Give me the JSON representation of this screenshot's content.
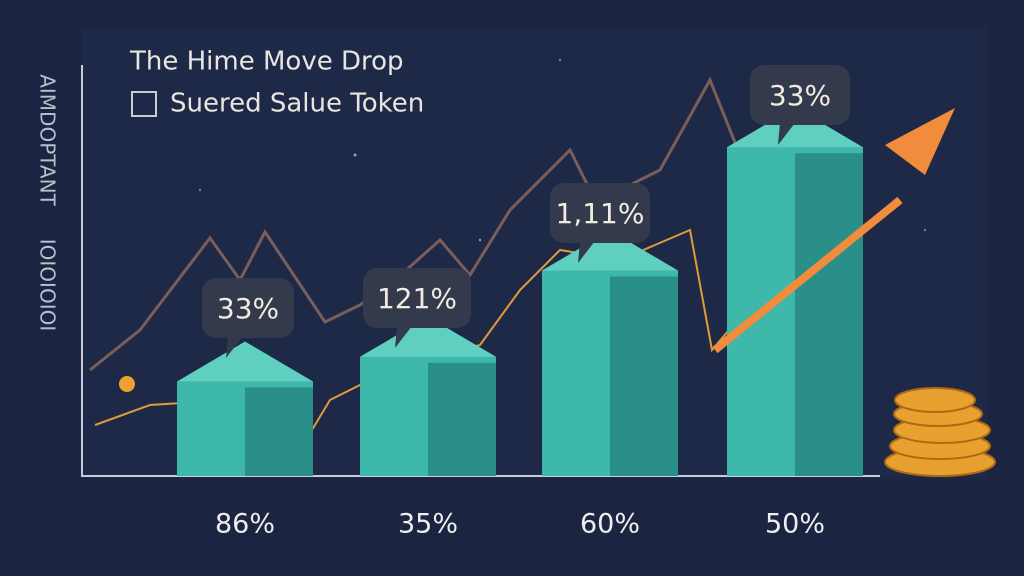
{
  "chart_data": {
    "type": "bar",
    "title": "The Hime Move Drop",
    "subtitle": "Suered Salue Token",
    "y_label": "AIMDOPTANT",
    "y_label_2": "IOIOIOIOI",
    "categories": [
      "86%",
      "35%",
      "60%",
      "50%"
    ],
    "values": [
      23,
      29,
      50,
      80
    ],
    "ylim": [
      0,
      100
    ],
    "color": "#3fb8ac",
    "callouts": [
      "33%",
      "121%",
      "1,11%",
      "33%"
    ]
  }
}
